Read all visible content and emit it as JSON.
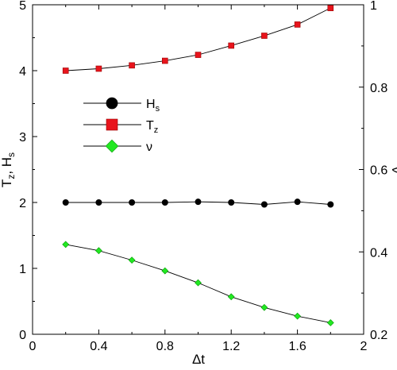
{
  "chart_data": {
    "type": "line",
    "x": [
      0.2,
      0.4,
      0.6,
      0.8,
      1.0,
      1.2,
      1.4,
      1.6,
      1.8
    ],
    "xlabel": "Δt",
    "ylabel_left_main": "T",
    "ylabel_left_sub": "z",
    "ylabel_left_rest": ", H",
    "ylabel_left_sub2": "s",
    "ylabel_right": "ν",
    "xlim": [
      0,
      2
    ],
    "ylim_left": [
      0,
      5
    ],
    "ylim_right": [
      0.2,
      1.0
    ],
    "xticks": [
      "0",
      "0.4",
      "0.8",
      "1.2",
      "1.6",
      "2"
    ],
    "xtick_values": [
      0,
      0.4,
      0.8,
      1.2,
      1.6,
      2
    ],
    "yticks_left": [
      "0",
      "1",
      "2",
      "3",
      "4",
      "5"
    ],
    "ytick_values_left": [
      0,
      1,
      2,
      3,
      4,
      5
    ],
    "yticks_right": [
      "0.2",
      "0.4",
      "0.6",
      "0.8",
      "1"
    ],
    "ytick_values_right": [
      0.2,
      0.4,
      0.6,
      0.8,
      1.0
    ],
    "grid": false,
    "legend_position": "upper-left",
    "series": [
      {
        "name": "H",
        "name_sub": "s",
        "axis": "left",
        "marker": "circle",
        "color": "#000000",
        "values": [
          2.0,
          2.0,
          2.0,
          2.0,
          2.01,
          2.0,
          1.97,
          2.01,
          1.97
        ]
      },
      {
        "name": "T",
        "name_sub": "z",
        "axis": "left",
        "marker": "square",
        "color": "#e8141c",
        "values": [
          4.0,
          4.03,
          4.08,
          4.15,
          4.24,
          4.38,
          4.53,
          4.7,
          4.95
        ]
      },
      {
        "name": "ν",
        "name_sub": "",
        "axis": "right",
        "marker": "diamond",
        "color": "#22e822",
        "values": [
          0.418,
          0.403,
          0.38,
          0.354,
          0.325,
          0.291,
          0.265,
          0.244,
          0.228
        ]
      }
    ]
  }
}
